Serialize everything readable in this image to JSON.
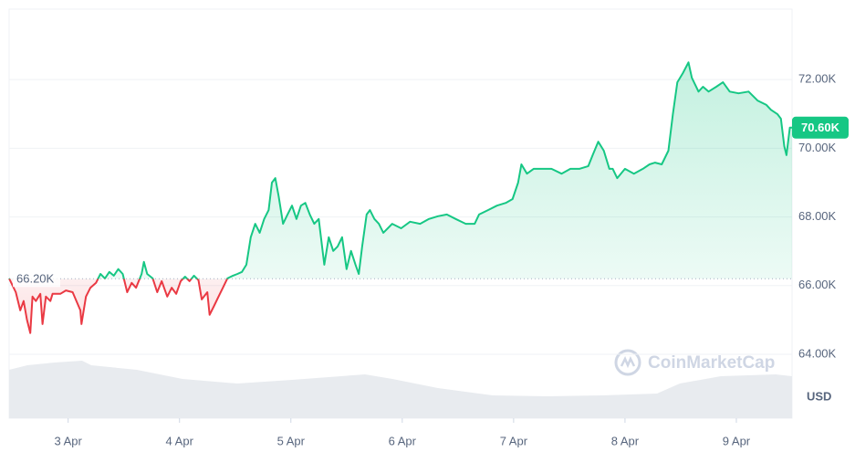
{
  "chart_data": {
    "type": "line",
    "x": [
      2.47,
      2.53,
      2.57,
      2.6,
      2.63,
      2.66,
      2.68,
      2.71,
      2.75,
      2.77,
      2.8,
      2.84,
      2.86,
      2.93,
      2.98,
      3.04,
      3.11,
      3.12,
      3.16,
      3.2,
      3.25,
      3.29,
      3.33,
      3.37,
      3.41,
      3.45,
      3.49,
      3.53,
      3.57,
      3.61,
      3.66,
      3.68,
      3.71,
      3.76,
      3.8,
      3.84,
      3.89,
      3.93,
      3.97,
      4.01,
      4.05,
      4.09,
      4.13,
      4.17,
      4.2,
      4.25,
      4.27,
      4.31,
      4.35,
      4.39,
      4.43,
      4.48,
      4.52,
      4.56,
      4.6,
      4.64,
      4.68,
      4.72,
      4.76,
      4.8,
      4.83,
      4.86,
      4.89,
      4.93,
      4.97,
      5.01,
      5.05,
      5.09,
      5.13,
      5.17,
      5.21,
      5.25,
      5.3,
      5.34,
      5.38,
      5.42,
      5.46,
      5.5,
      5.54,
      5.58,
      5.61,
      5.64,
      5.68,
      5.71,
      5.75,
      5.79,
      5.83,
      5.87,
      5.91,
      5.99,
      6.07,
      6.16,
      6.24,
      6.32,
      6.4,
      6.48,
      6.57,
      6.65,
      6.69,
      6.77,
      6.85,
      6.93,
      6.99,
      7.04,
      7.07,
      7.12,
      7.18,
      7.26,
      7.34,
      7.43,
      7.51,
      7.59,
      7.67,
      7.71,
      7.76,
      7.81,
      7.86,
      7.89,
      7.93,
      8.0,
      8.08,
      8.16,
      8.22,
      8.27,
      8.33,
      8.39,
      8.43,
      8.47,
      8.52,
      8.57,
      8.6,
      8.66,
      8.7,
      8.75,
      8.82,
      8.88,
      8.94,
      9.02,
      9.11,
      9.19,
      9.27,
      9.31,
      9.37,
      9.4,
      9.43,
      9.45,
      9.48,
      9.5
    ],
    "values": [
      66210,
      65810,
      65280,
      65550,
      65010,
      64620,
      65680,
      65550,
      65760,
      64880,
      65680,
      65550,
      65760,
      65760,
      65860,
      65810,
      65280,
      64880,
      65680,
      65940,
      66080,
      66340,
      66210,
      66400,
      66290,
      66480,
      66340,
      65810,
      66080,
      65940,
      66340,
      66690,
      66340,
      66210,
      65810,
      66130,
      65680,
      65940,
      65760,
      66130,
      66260,
      66130,
      66290,
      66160,
      65600,
      65810,
      65150,
      65410,
      65680,
      65940,
      66210,
      66290,
      66340,
      66400,
      66610,
      67410,
      67800,
      67540,
      67940,
      68200,
      69000,
      69130,
      68600,
      67800,
      68070,
      68330,
      67940,
      68330,
      68410,
      68070,
      67800,
      67940,
      66610,
      67410,
      67010,
      67140,
      67410,
      66480,
      67010,
      66610,
      66340,
      67140,
      68070,
      68200,
      67940,
      67800,
      67540,
      67670,
      67800,
      67670,
      67860,
      67800,
      67940,
      68020,
      68070,
      67940,
      67800,
      67800,
      68070,
      68200,
      68330,
      68410,
      68520,
      69000,
      69530,
      69260,
      69400,
      69400,
      69400,
      69260,
      69400,
      69400,
      69480,
      69800,
      70190,
      69930,
      69400,
      69400,
      69130,
      69400,
      69260,
      69400,
      69530,
      69580,
      69530,
      69930,
      70990,
      71920,
      72190,
      72500,
      72050,
      71650,
      71790,
      71650,
      71790,
      71920,
      71650,
      71600,
      71650,
      71390,
      71260,
      71120,
      70990,
      70860,
      70060,
      69800,
      70600,
      70600
    ],
    "up_color": "#16c784",
    "down_color": "#ea3943",
    "baseline": {
      "value": 66200,
      "label": "66.20K"
    },
    "current": {
      "value": 70600,
      "label": "70.60K"
    },
    "xlim": [
      2.47,
      9.5
    ],
    "xticks": [
      {
        "value": 3,
        "label": "3 Apr"
      },
      {
        "value": 4,
        "label": "4 Apr"
      },
      {
        "value": 5,
        "label": "5 Apr"
      },
      {
        "value": 6,
        "label": "6 Apr"
      },
      {
        "value": 7,
        "label": "7 Apr"
      },
      {
        "value": 8,
        "label": "8 Apr"
      },
      {
        "value": 9,
        "label": "9 Apr"
      }
    ],
    "ylim": [
      62140,
      74050
    ],
    "yticks": [
      {
        "value": 64000,
        "label": "64.00K"
      },
      {
        "value": 66000,
        "label": "66.00K"
      },
      {
        "value": 68000,
        "label": "68.00K"
      },
      {
        "value": 70000,
        "label": "70.00K"
      },
      {
        "value": 72000,
        "label": "72.00K"
      }
    ],
    "grid": true,
    "currency": "USD",
    "watermark": "CoinMarketCap"
  }
}
